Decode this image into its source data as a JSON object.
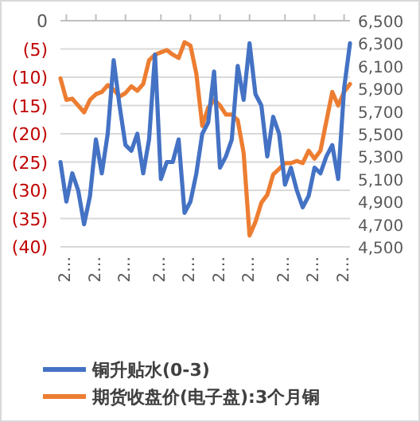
{
  "chart_data": {
    "type": "line",
    "categories": [
      null,
      "2…",
      null,
      null,
      null,
      null,
      "2…",
      null,
      null,
      null,
      null,
      "2…",
      null,
      null,
      null,
      null,
      null,
      "2…",
      null,
      null,
      null,
      null,
      "2…",
      null,
      null,
      null,
      null,
      "2…",
      null,
      null,
      null,
      null,
      "2…",
      null,
      null,
      null,
      null,
      null,
      "2…",
      null,
      null,
      null,
      null,
      "2…",
      null,
      null,
      null,
      null,
      "2…",
      null
    ],
    "series": [
      {
        "name": "铜升贴水(0-3)",
        "color": "#4472c4",
        "values": [
          -25,
          -32,
          -27,
          -30,
          -36,
          -31,
          -21,
          -27,
          -20,
          -7,
          -15,
          -22,
          -23,
          -20,
          -27,
          -21,
          -6,
          -28,
          -25,
          -25,
          -21,
          -34,
          -32,
          -27,
          -20,
          -18,
          -9,
          -26,
          -24,
          -21,
          -8,
          -14,
          -4,
          -13,
          -15,
          -24,
          -17,
          -20,
          -29,
          -26,
          -30,
          -33,
          -31,
          -26,
          -27,
          -24,
          -22,
          -28,
          -12,
          -4
        ]
      },
      {
        "name": "期货收盘价(电子盘):3个月铜",
        "color": "#ed7d31",
        "axis": "y2",
        "values": [
          5990,
          5800,
          5810,
          5750,
          5690,
          5800,
          5850,
          5870,
          5930,
          5890,
          5830,
          5860,
          5920,
          5880,
          5940,
          6150,
          6200,
          6220,
          6240,
          6200,
          6170,
          6310,
          6280,
          6030,
          5570,
          5730,
          5800,
          5750,
          5670,
          5670,
          5620,
          5330,
          4600,
          4720,
          4890,
          4960,
          5140,
          5190,
          5240,
          5240,
          5260,
          5240,
          5350,
          5280,
          5350,
          5610,
          5870,
          5750,
          5870,
          5940
        ]
      }
    ],
    "ylim": [
      -40,
      0
    ],
    "yticks": [
      {
        "value": -40,
        "label": "(40)"
      },
      {
        "value": -35,
        "label": "(35)"
      },
      {
        "value": -30,
        "label": "(30)"
      },
      {
        "value": -25,
        "label": "(25)"
      },
      {
        "value": -20,
        "label": "(20)"
      },
      {
        "value": -15,
        "label": "(15)"
      },
      {
        "value": -10,
        "label": "(10)"
      },
      {
        "value": -5,
        "label": "(5)"
      },
      0
    ],
    "y2lim": [
      4500,
      6500
    ],
    "y2ticks": [
      {
        "value": 4500,
        "label": "4,500"
      },
      {
        "value": 4700,
        "label": "4,700"
      },
      {
        "value": 4900,
        "label": "4,900"
      },
      {
        "value": 5100,
        "label": "5,100"
      },
      {
        "value": 5300,
        "label": "5,300"
      },
      {
        "value": 5500,
        "label": "5,500"
      },
      {
        "value": 5700,
        "label": "5,700"
      },
      {
        "value": 5900,
        "label": "5,900"
      },
      {
        "value": 6100,
        "label": "6,100"
      },
      {
        "value": 6300,
        "label": "6,300"
      },
      {
        "value": 6500,
        "label": "6,500"
      }
    ],
    "grid": "y",
    "legend": "bottom"
  }
}
